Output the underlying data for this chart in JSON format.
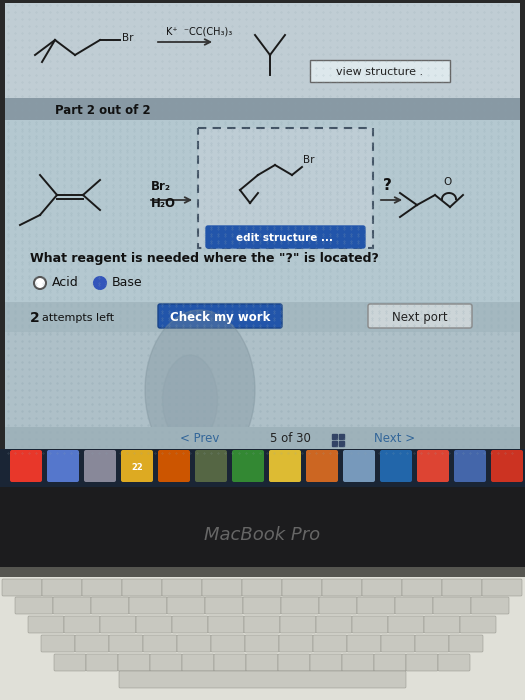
{
  "screen_bg": "#b8ccd4",
  "screen_top_bg": "#c0cdd4",
  "part2_bar_color": "#8899a4",
  "content_bg": "#b4c8d0",
  "title_text": "Part 2 out of 2",
  "question_text": "What reagent is needed where the \"?\" is located?",
  "option1": "Acid",
  "option2": "Base",
  "attempts_text": "2  attempts left",
  "btn1_text": "Check my work",
  "btn2_text": "Next port",
  "reagent_above": "Br₂",
  "reagent_below": "H₂O",
  "question_mark": "?",
  "view_structure_btn": "view structure .",
  "reagent_top": "K⁺  ⁻CC(CH₃)₃",
  "nav_prev": "< Prev",
  "nav_page": "5 of 30",
  "nav_next": "Next >",
  "macbook_text": "MacBook Pro",
  "edit_structure_btn": "edit structure ...",
  "top_label_br": "Br",
  "dock_bg": "#1a2535",
  "bezel_color": "#1c1c1e",
  "keyboard_bg": "#1a1a1a",
  "laptop_outer": "#282828",
  "nav_bar_bg": "#a8bcc4",
  "bottom_area_bg": "#aec0c8",
  "dock_colors": [
    "#e8372a",
    "#4477cc",
    "#cc4444",
    "#bb9933",
    "#cc4400",
    "#556655",
    "#338833",
    "#bbaa33",
    "#cc6622",
    "#33557a",
    "#337799",
    "#dd4444",
    "#4466aa"
  ],
  "finger_reflection": true
}
